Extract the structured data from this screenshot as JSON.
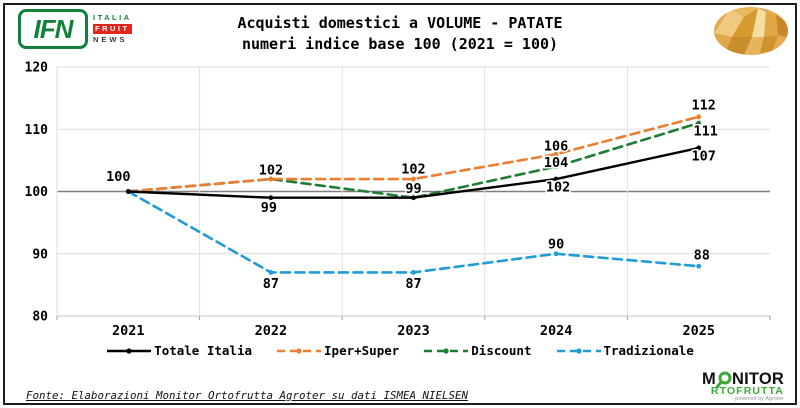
{
  "header": {
    "ifn_logo": {
      "acronym": "IFN",
      "line1": "ITALIA",
      "line2": "FRUIT",
      "line3": "NEWS",
      "green": "#12823a",
      "red": "#e1251b"
    },
    "title_line1": "Acquisti domestici a VOLUME - PATATE",
    "title_line2": "numeri indice base 100 (2021 = 100)",
    "potato_logo": {
      "palette": [
        "#efc97f",
        "#d79a30",
        "#c98e2c",
        "#f4dea4",
        "#dfa845",
        "#c8862a",
        "#e6b45a",
        "#d0922e",
        "#e8b95c"
      ]
    }
  },
  "chart_data": {
    "type": "line",
    "title": "Acquisti domestici a VOLUME - PATATE",
    "subtitle": "numeri indice base 100 (2021 = 100)",
    "categories": [
      "2021",
      "2022",
      "2023",
      "2024",
      "2025"
    ],
    "ylim": [
      80,
      120
    ],
    "yticks": [
      80,
      90,
      100,
      110,
      120
    ],
    "baseline": 100,
    "grid": true,
    "legend_position": "bottom",
    "series": [
      {
        "name": "Totale Italia",
        "color": "#000000",
        "dashed": false,
        "values": [
          100,
          99,
          99,
          102,
          107
        ],
        "labels": [
          "100",
          "99",
          "99",
          "102",
          "107"
        ],
        "label_offsets": [
          [
            -10,
            -15
          ],
          [
            -2,
            10
          ],
          [
            0,
            -9
          ],
          [
            2,
            8
          ],
          [
            5,
            8
          ]
        ]
      },
      {
        "name": "Iper+Super",
        "color": "#ed7d31",
        "dashed": true,
        "values": [
          100,
          102,
          102,
          106,
          112
        ],
        "labels": [
          null,
          "102",
          "102",
          "106",
          "112"
        ],
        "label_offsets": [
          null,
          [
            0,
            -9
          ],
          [
            0,
            -10
          ],
          [
            0,
            -8
          ],
          [
            5,
            -12
          ]
        ]
      },
      {
        "name": "Discount",
        "color": "#1e7c34",
        "dashed": true,
        "values": [
          100,
          102,
          99,
          104,
          111
        ],
        "labels": [
          null,
          null,
          null,
          "104",
          "111"
        ],
        "label_offsets": [
          null,
          null,
          null,
          [
            0,
            -4
          ],
          [
            7,
            8
          ]
        ]
      },
      {
        "name": "Tradizionale",
        "color": "#1f9bd7",
        "dashed": true,
        "values": [
          100,
          87,
          87,
          90,
          88
        ],
        "labels": [
          null,
          "87",
          "87",
          "90",
          "88"
        ],
        "label_offsets": [
          null,
          [
            0,
            11
          ],
          [
            0,
            11
          ],
          [
            0,
            -10
          ],
          [
            3,
            -11
          ]
        ]
      }
    ]
  },
  "footer": {
    "source": "Fonte: Elaborazioni Monitor Ortofrutta Agroter su dati ISMEA NIELSEN"
  },
  "monitor_logo": {
    "m": "M",
    "nitor": "NITOR",
    "row2": "RTOFRUTTA",
    "powered": "powered by Agroter",
    "green": "#3aaa35"
  }
}
